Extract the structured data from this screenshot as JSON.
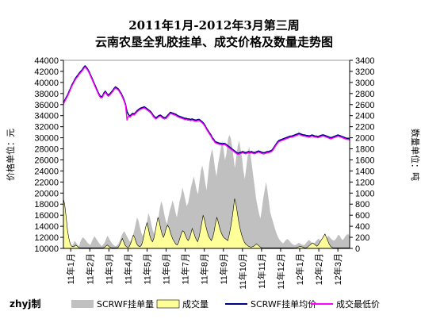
{
  "chart_data": {
    "type": "area",
    "title_line1": "2011年1月-2012年3月第三周",
    "title_line2": "云南农垦全乳胶挂单、成交价格及数量走势图",
    "ylabel_left": "价格单位：元",
    "ylabel_right": "数量单位：吨",
    "ylim_left": [
      10000,
      44000
    ],
    "ylim_right": [
      0,
      3400
    ],
    "yticks_left": [
      "10000",
      "12000",
      "14000",
      "16000",
      "18000",
      "20000",
      "22000",
      "24000",
      "26000",
      "28000",
      "30000",
      "32000",
      "34000",
      "36000",
      "38000",
      "40000",
      "42000",
      "44000"
    ],
    "yticks_right": [
      "0",
      "200",
      "400",
      "600",
      "800",
      "1000",
      "1200",
      "1400",
      "1600",
      "1800",
      "2000",
      "2200",
      "2400",
      "2600",
      "2800",
      "3000",
      "3200",
      "3400"
    ],
    "x_tick_labels": [
      "11年1月",
      "11年2月",
      "11年3月",
      "11年4月",
      "11年5月",
      "11年6月",
      "11年7月",
      "11年8月",
      "11年9月",
      "11年10月",
      "11年11月",
      "11年12月",
      "12年1月",
      "12年2月",
      "12年3月"
    ],
    "grid": false,
    "legend_position": "bottom",
    "signature": "zhyj制",
    "series": [
      {
        "name": "SCRWF挂单量",
        "kind": "area",
        "axis": "right",
        "color": "#c0c0c0",
        "values": [
          480,
          420,
          330,
          230,
          120,
          60,
          40,
          80,
          140,
          100,
          60,
          40,
          120,
          180,
          200,
          170,
          140,
          100,
          80,
          60,
          120,
          180,
          220,
          180,
          140,
          100,
          70,
          40,
          70,
          100,
          160,
          230,
          190,
          140,
          100,
          70,
          50,
          40,
          60,
          90,
          150,
          230,
          280,
          310,
          260,
          210,
          160,
          120,
          160,
          230,
          330,
          440,
          560,
          500,
          380,
          280,
          220,
          280,
          380,
          480,
          640,
          560,
          440,
          330,
          260,
          330,
          420,
          540,
          720,
          850,
          780,
          640,
          520,
          440,
          560,
          680,
          760,
          870,
          780,
          660,
          560,
          700,
          850,
          950,
          1100,
          1000,
          880,
          760,
          820,
          960,
          1100,
          1200,
          1300,
          1180,
          1050,
          980,
          1200,
          1400,
          1500,
          1380,
          1200,
          1050,
          1300,
          1550,
          1700,
          1800,
          1650,
          1450,
          1300,
          1500,
          1650,
          1800,
          1950,
          1800,
          1600,
          1700,
          1950,
          2050,
          2000,
          1850,
          1650,
          1450,
          1650,
          1850,
          1950,
          1800,
          1650,
          1400,
          1250,
          1450,
          1650,
          1850,
          1700,
          1500,
          1300,
          1100,
          900,
          760,
          640,
          540,
          700,
          900,
          1050,
          1200,
          1050,
          850,
          650,
          560,
          470,
          380,
          300,
          230,
          180,
          140,
          110,
          90,
          120,
          150,
          170,
          150,
          120,
          90,
          70,
          60,
          60,
          80,
          100,
          90,
          70,
          60,
          60,
          90,
          120,
          150,
          140,
          110,
          90,
          90,
          120,
          150,
          180,
          150,
          120,
          100,
          120,
          160,
          200,
          230,
          200,
          170,
          150,
          140,
          160,
          200,
          250,
          230,
          180,
          150,
          180,
          220,
          250,
          260,
          220
        ]
      },
      {
        "name": "成交量",
        "kind": "area",
        "axis": "right",
        "color": "#ffff99",
        "values": [
          900,
          780,
          560,
          320,
          180,
          80,
          40,
          30,
          40,
          60,
          40,
          20,
          10,
          10,
          10,
          10,
          10,
          10,
          10,
          10,
          10,
          10,
          10,
          10,
          10,
          10,
          10,
          10,
          10,
          10,
          20,
          40,
          60,
          40,
          20,
          10,
          10,
          10,
          10,
          10,
          20,
          60,
          120,
          180,
          120,
          60,
          30,
          20,
          30,
          80,
          160,
          240,
          200,
          120,
          60,
          40,
          30,
          60,
          140,
          260,
          380,
          460,
          360,
          240,
          160,
          120,
          180,
          300,
          440,
          560,
          480,
          360,
          260,
          200,
          260,
          360,
          420,
          380,
          300,
          220,
          160,
          120,
          80,
          60,
          100,
          180,
          260,
          320,
          300,
          240,
          180,
          140,
          180,
          260,
          360,
          300,
          220,
          160,
          120,
          200,
          320,
          460,
          600,
          520,
          400,
          300,
          220,
          180,
          140,
          200,
          300,
          440,
          560,
          480,
          380,
          300,
          240,
          200,
          180,
          160,
          140,
          240,
          360,
          520,
          700,
          900,
          800,
          640,
          480,
          360,
          260,
          180,
          120,
          80,
          60,
          40,
          30,
          20,
          30,
          40,
          60,
          80,
          60,
          40,
          20,
          10,
          10,
          10,
          10,
          10,
          10,
          10,
          10,
          10,
          10,
          10,
          10,
          10,
          10,
          10,
          10,
          10,
          10,
          10,
          10,
          10,
          10,
          10,
          10,
          10,
          10,
          20,
          30,
          40,
          30,
          20,
          10,
          10,
          20,
          40,
          60,
          80,
          100,
          80,
          60,
          40,
          60,
          100,
          140,
          180,
          220,
          260,
          200,
          140,
          80,
          40,
          20,
          10,
          10,
          10,
          10,
          10,
          10,
          10,
          10,
          10,
          10,
          10,
          10,
          10
        ]
      },
      {
        "name": "SCRWF挂单均价",
        "kind": "line",
        "axis": "left",
        "color": "#000080",
        "values": [
          36300,
          36800,
          37300,
          37800,
          38400,
          39000,
          39600,
          40100,
          40600,
          41000,
          41300,
          41700,
          42000,
          42300,
          42700,
          43000,
          42700,
          42300,
          41800,
          41200,
          40600,
          40000,
          39400,
          38800,
          38200,
          37700,
          37400,
          37500,
          38100,
          38400,
          38000,
          37700,
          37900,
          38200,
          38500,
          38900,
          39200,
          39000,
          38800,
          38400,
          38000,
          37400,
          36800,
          36000,
          34700,
          34200,
          33900,
          34200,
          34400,
          34300,
          34600,
          34900,
          35100,
          35300,
          35400,
          35500,
          35600,
          35400,
          35200,
          35000,
          34800,
          34500,
          34100,
          33800,
          33600,
          33800,
          34000,
          34100,
          33900,
          33700,
          33600,
          33700,
          34000,
          34300,
          34600,
          34500,
          34400,
          34300,
          34200,
          34000,
          33900,
          33800,
          33700,
          33600,
          33500,
          33500,
          33400,
          33400,
          33300,
          33400,
          33300,
          33200,
          33200,
          33300,
          33300,
          33100,
          32900,
          32600,
          32200,
          31700,
          31300,
          30900,
          30500,
          30000,
          29700,
          29300,
          29200,
          29100,
          29000,
          29000,
          28900,
          29000,
          28900,
          28700,
          28500,
          28300,
          28100,
          27900,
          27700,
          27500,
          27300,
          27200,
          27300,
          27400,
          27500,
          27400,
          27300,
          27400,
          27500,
          27400,
          27500,
          27400,
          27300,
          27400,
          27500,
          27600,
          27500,
          27400,
          27300,
          27300,
          27400,
          27500,
          27500,
          27600,
          27700,
          28000,
          28400,
          28800,
          29200,
          29500,
          29600,
          29700,
          29800,
          29900,
          30000,
          30100,
          30200,
          30300,
          30300,
          30400,
          30500,
          30600,
          30700,
          30800,
          30700,
          30600,
          30500,
          30500,
          30400,
          30400,
          30300,
          30400,
          30500,
          30400,
          30300,
          30300,
          30200,
          30300,
          30400,
          30500,
          30500,
          30400,
          30300,
          30200,
          30100,
          30000,
          30100,
          30200,
          30300,
          30400,
          30500,
          30400,
          30300,
          30200,
          30100,
          30000,
          29900,
          29900,
          29800
        ]
      },
      {
        "name": "成交最低价",
        "kind": "line",
        "axis": "left",
        "color": "#ff00ff",
        "values": [
          36100,
          36600,
          37100,
          37600,
          38200,
          38800,
          39400,
          39900,
          40400,
          40800,
          41100,
          41500,
          41800,
          42100,
          42500,
          42800,
          42500,
          42100,
          41600,
          41000,
          40400,
          39800,
          39200,
          38600,
          38000,
          37500,
          37200,
          37300,
          37900,
          38200,
          37800,
          37500,
          37700,
          38000,
          38300,
          38700,
          39000,
          38800,
          38600,
          38200,
          37800,
          37200,
          36600,
          35800,
          33200,
          34000,
          33700,
          34000,
          34200,
          34100,
          34400,
          34700,
          34900,
          35100,
          35200,
          35300,
          35400,
          35200,
          35000,
          34800,
          34600,
          34300,
          33900,
          33600,
          33400,
          33600,
          33800,
          33900,
          33700,
          33500,
          33400,
          33500,
          33800,
          34100,
          34400,
          34300,
          34200,
          34100,
          34000,
          33800,
          33700,
          33600,
          33500,
          33400,
          33300,
          33300,
          33200,
          33200,
          33100,
          33200,
          33100,
          33000,
          33000,
          33100,
          33100,
          32900,
          32700,
          32400,
          32000,
          31500,
          31100,
          30700,
          30300,
          29800,
          29500,
          29100,
          29000,
          28900,
          28800,
          28800,
          28700,
          28800,
          28700,
          28500,
          28300,
          28100,
          27900,
          27700,
          27500,
          27300,
          27100,
          27000,
          27100,
          27200,
          27300,
          27200,
          27100,
          27200,
          27300,
          27200,
          27300,
          27200,
          27100,
          27200,
          27300,
          27400,
          27300,
          27200,
          27100,
          27100,
          27200,
          27300,
          27300,
          27400,
          27500,
          27800,
          28200,
          28600,
          29000,
          29300,
          29400,
          29500,
          29600,
          29700,
          29800,
          29900,
          30000,
          30100,
          30100,
          30200,
          30300,
          30400,
          30500,
          30600,
          30500,
          30400,
          30300,
          30300,
          30200,
          30200,
          30100,
          30200,
          30300,
          30200,
          30100,
          30100,
          30000,
          30100,
          30200,
          30300,
          30300,
          30200,
          30100,
          30000,
          29900,
          29800,
          29900,
          30000,
          30100,
          30200,
          30300,
          30200,
          30100,
          30000,
          29900,
          29800,
          29700,
          29700,
          29600
        ]
      }
    ]
  }
}
